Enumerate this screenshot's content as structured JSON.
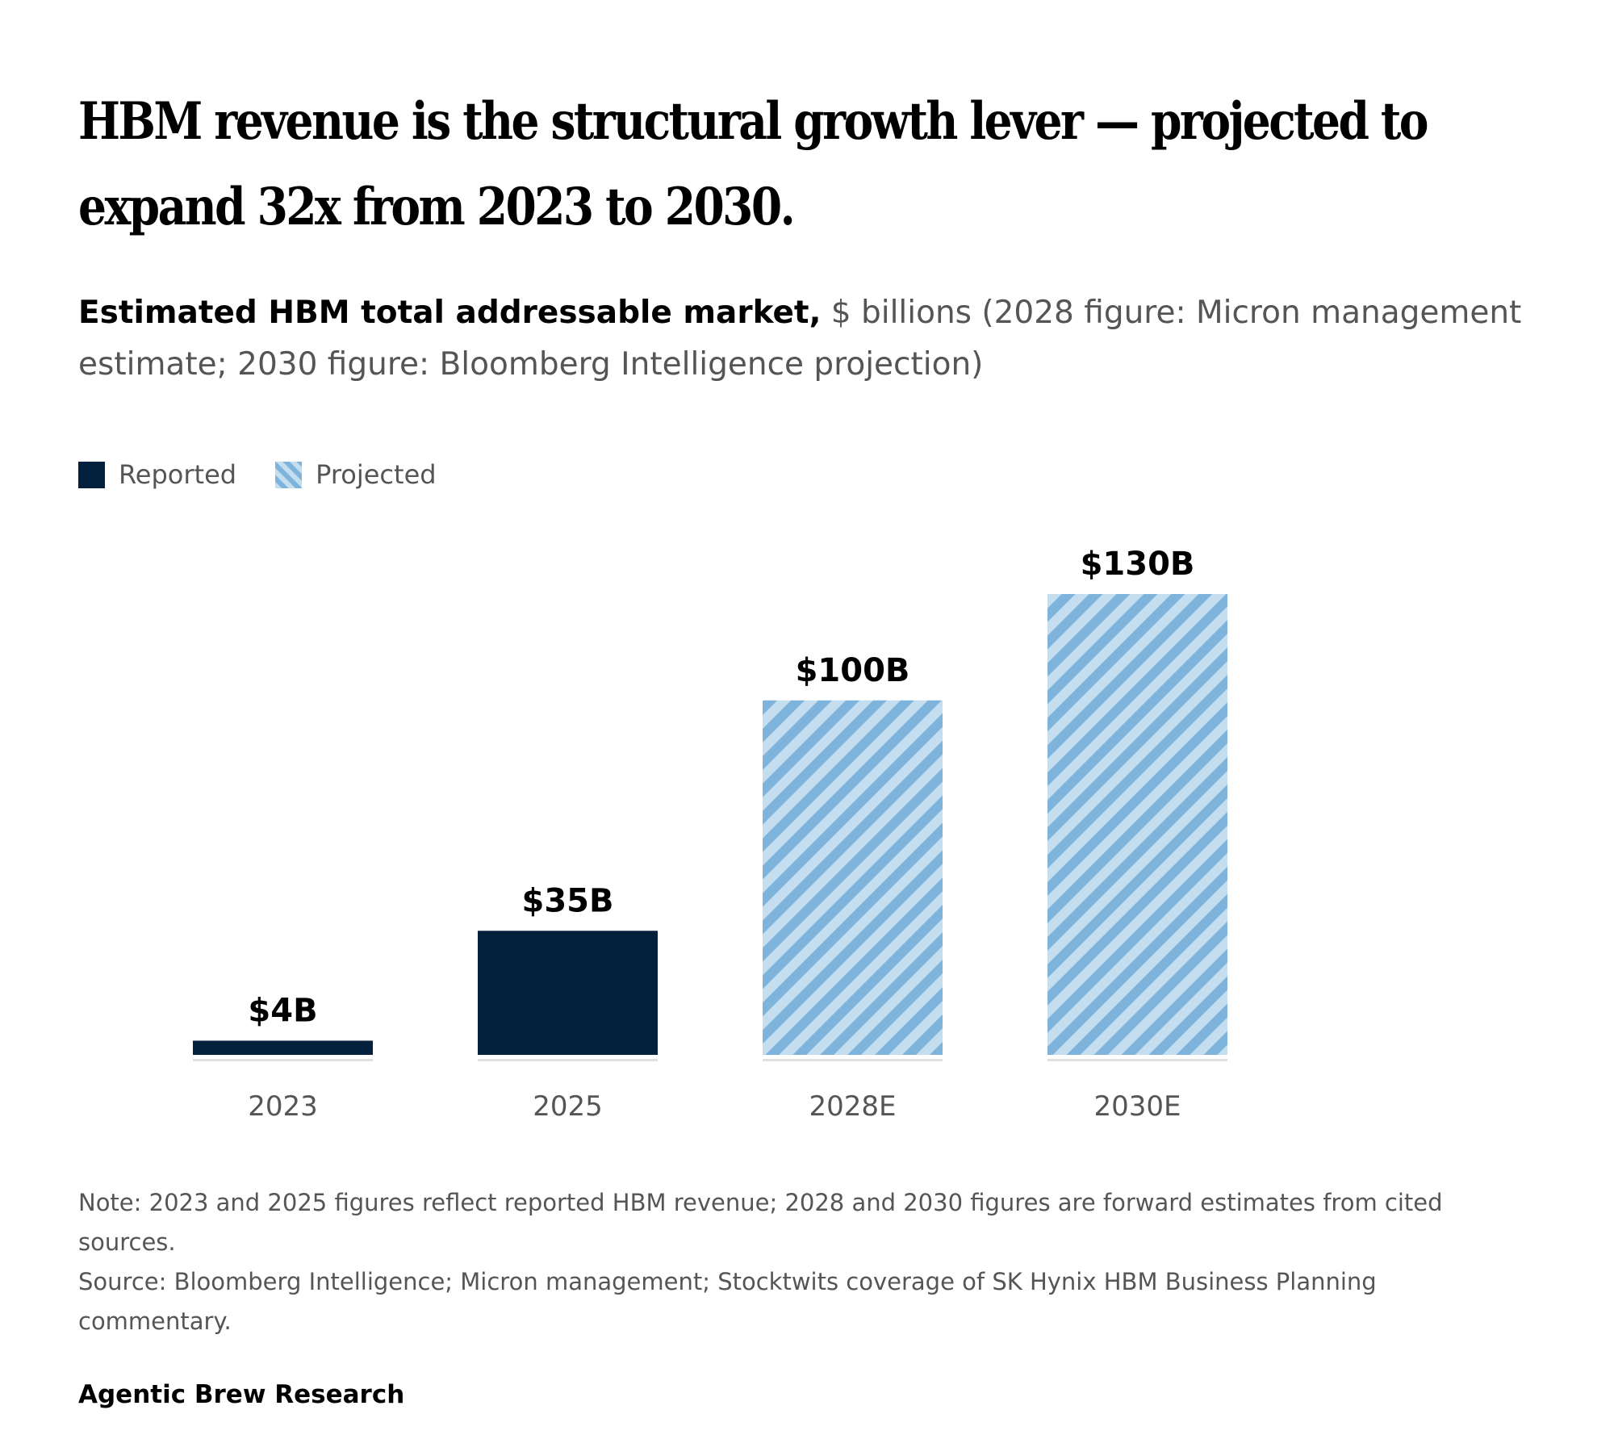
{
  "title": "HBM revenue is the structural growth lever — projected to expand 32x from 2023 to 2030.",
  "subtitle": {
    "strong": "Estimated HBM total addressable market,",
    "rest": " $ billions (2028 figure: Micron management estimate; 2030 figure: Bloomberg Intelligence projection)"
  },
  "legend": {
    "reported": "Reported",
    "projected": "Projected"
  },
  "chart_data": {
    "type": "bar",
    "categories": [
      "2023",
      "2025",
      "2028E",
      "2030E"
    ],
    "values": [
      4,
      35,
      100,
      130
    ],
    "value_labels": [
      "$4B",
      "$35B",
      "$100B",
      "$130B"
    ],
    "status": [
      "Reported",
      "Reported",
      "Projected",
      "Projected"
    ],
    "ylim": [
      0,
      130
    ],
    "grid": false,
    "legend_position": "top-left",
    "colors": {
      "reported": "#03203d",
      "projected_light": "#c4def0",
      "projected_dark": "#7eb3db",
      "baseline": "#e0e0e0"
    }
  },
  "footnote": {
    "note": "Note: 2023 and 2025 figures reflect reported HBM revenue; 2028 and 2030 figures are forward estimates from cited sources.",
    "source": "Source: Bloomberg Intelligence; Micron management; Stocktwits coverage of SK Hynix HBM Business Planning commentary."
  },
  "brand": "Agentic Brew Research"
}
